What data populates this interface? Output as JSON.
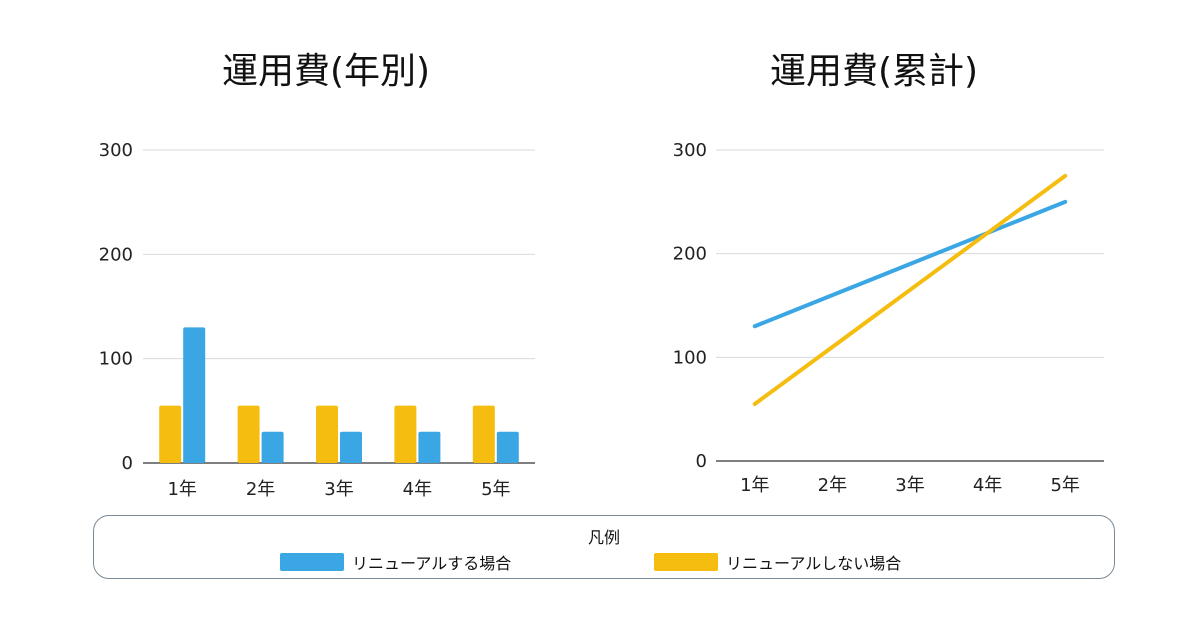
{
  "colors": {
    "renewal": "#3aa6e3",
    "no_renewal": "#f5bd0f",
    "grid": "#d9d9d9",
    "axis": "#555555"
  },
  "legend": {
    "title": "凡例",
    "items": [
      {
        "label": "リニューアルする場合",
        "color": "#3aa6e3"
      },
      {
        "label": "リニューアルしない場合",
        "color": "#f5bd0f"
      }
    ]
  },
  "chart_data": [
    {
      "type": "bar",
      "title": "運用費(年別)",
      "categories": [
        "1年",
        "2年",
        "3年",
        "4年",
        "5年"
      ],
      "series": [
        {
          "name": "リニューアルしない場合",
          "values": [
            55,
            55,
            55,
            55,
            55
          ],
          "color": "#f5bd0f"
        },
        {
          "name": "リニューアルする場合",
          "values": [
            130,
            30,
            30,
            30,
            30
          ],
          "color": "#3aa6e3"
        }
      ],
      "yticks": [
        0,
        100,
        200,
        300
      ],
      "ylim": [
        0,
        300
      ],
      "grid": true
    },
    {
      "type": "line",
      "title": "運用費(累計)",
      "categories": [
        "1年",
        "2年",
        "3年",
        "4年",
        "5年"
      ],
      "series": [
        {
          "name": "リニューアルする場合",
          "values": [
            130,
            160,
            190,
            220,
            250
          ],
          "color": "#3aa6e3"
        },
        {
          "name": "リニューアルしない場合",
          "values": [
            55,
            110,
            165,
            220,
            275
          ],
          "color": "#f5bd0f"
        }
      ],
      "yticks": [
        0,
        100,
        200,
        300
      ],
      "ylim": [
        0,
        300
      ],
      "grid": true
    }
  ]
}
